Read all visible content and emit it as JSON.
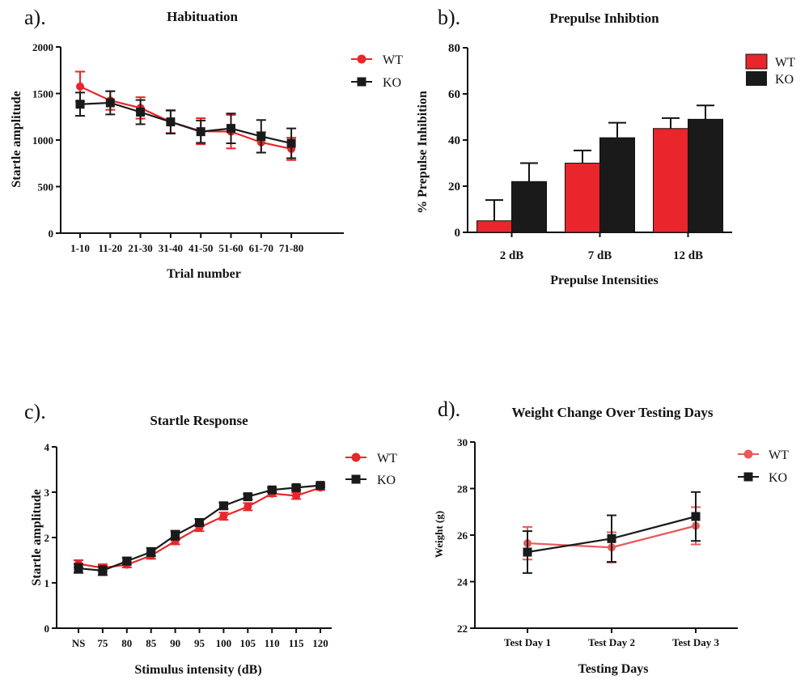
{
  "colors": {
    "wt": "#e8262b",
    "ko": "#1a1a1a",
    "wt_light": "#e85a5a"
  },
  "chart_data": [
    {
      "panel": "a).",
      "type": "line",
      "title": "Habituation",
      "xlabel": "Trial number",
      "ylabel": "Startle amplitude",
      "categories": [
        "1-10",
        "11-20",
        "21-30",
        "31-40",
        "41-50",
        "51-60",
        "61-70",
        "71-80"
      ],
      "ylim": [
        0,
        2000
      ],
      "yticks": [
        0,
        500,
        1000,
        1500,
        2000
      ],
      "legend_position": "top-right",
      "series": [
        {
          "name": "WT",
          "values": [
            1575,
            1425,
            1345,
            1195,
            1095,
            1090,
            975,
            905
          ],
          "errors": [
            160,
            100,
            115,
            120,
            140,
            180,
            110,
            120
          ]
        },
        {
          "name": "KO",
          "values": [
            1385,
            1400,
            1300,
            1195,
            1090,
            1125,
            1040,
            965
          ],
          "errors": [
            125,
            125,
            130,
            125,
            120,
            160,
            175,
            160
          ]
        }
      ]
    },
    {
      "panel": "b).",
      "type": "bar",
      "title": "Prepulse Inhibtion",
      "xlabel": "Prepulse Intensities",
      "ylabel": "% Prepulse Inhibition",
      "categories": [
        "2 dB",
        "7 dB",
        "12 dB"
      ],
      "ylim": [
        0,
        80
      ],
      "yticks": [
        0,
        20,
        40,
        60,
        80
      ],
      "legend_position": "top-right",
      "series": [
        {
          "name": "WT",
          "values": [
            5,
            30,
            45
          ],
          "errors": [
            9,
            5.5,
            4.5
          ]
        },
        {
          "name": "KO",
          "values": [
            22,
            41,
            49
          ],
          "errors": [
            8,
            6.5,
            6
          ]
        }
      ]
    },
    {
      "panel": "c).",
      "type": "line",
      "title": "Startle Response",
      "xlabel": "Stimulus intensity (dB)",
      "ylabel": "Startle amplitude",
      "categories": [
        "NS",
        "75",
        "80",
        "85",
        "90",
        "95",
        "100",
        "105",
        "110",
        "115",
        "120"
      ],
      "ylim": [
        0,
        4
      ],
      "yticks": [
        0,
        1,
        2,
        3,
        4
      ],
      "legend_position": "top-right",
      "series": [
        {
          "name": "WT",
          "values": [
            1.42,
            1.33,
            1.4,
            1.6,
            1.92,
            2.22,
            2.47,
            2.68,
            2.97,
            2.92,
            3.1
          ],
          "errors": [
            0.08,
            0.08,
            0.06,
            0.07,
            0.07,
            0.08,
            0.08,
            0.08,
            0.06,
            0.07,
            0.05
          ]
        },
        {
          "name": "KO",
          "values": [
            1.32,
            1.27,
            1.48,
            1.68,
            2.05,
            2.33,
            2.7,
            2.9,
            3.05,
            3.1,
            3.15
          ],
          "errors": [
            0.1,
            0.1,
            0.08,
            0.09,
            0.1,
            0.08,
            0.07,
            0.06,
            0.05,
            0.05,
            0.04
          ]
        }
      ]
    },
    {
      "panel": "d).",
      "type": "line",
      "title": "Weight Change Over Testing Days",
      "xlabel": "Testing Days",
      "ylabel": "Weight (g)",
      "categories": [
        "Test Day 1",
        "Test Day 2",
        "Test Day 3"
      ],
      "ylim": [
        22,
        30
      ],
      "yticks": [
        22,
        24,
        26,
        28,
        30
      ],
      "legend_position": "top-right",
      "series": [
        {
          "name": "WT",
          "values": [
            25.65,
            25.47,
            26.4
          ],
          "errors": [
            0.7,
            0.65,
            0.8
          ]
        },
        {
          "name": "KO",
          "values": [
            25.27,
            25.85,
            26.8
          ],
          "errors": [
            0.9,
            1.0,
            1.05
          ]
        }
      ]
    }
  ]
}
